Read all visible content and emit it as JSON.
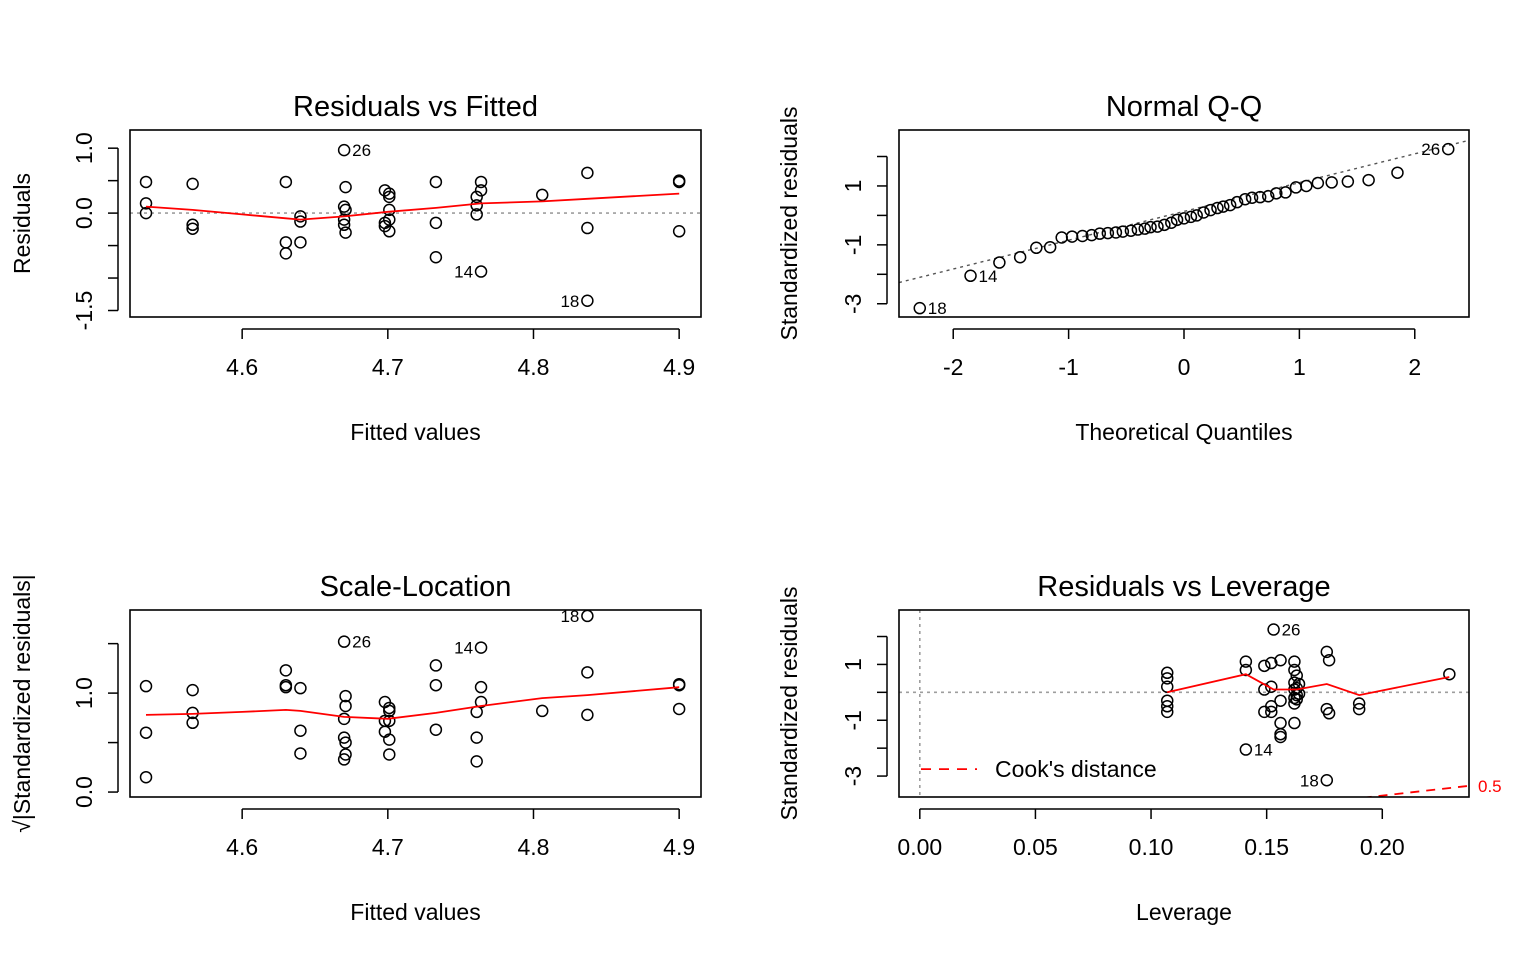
{
  "chart_data": [
    {
      "id": "rvf",
      "type": "scatter",
      "title": "Residuals vs Fitted",
      "xlabel": "Fitted values",
      "ylabel": "Residuals",
      "xlim": [
        4.523,
        4.915
      ],
      "ylim": [
        -1.6,
        1.28
      ],
      "xticks": [
        4.6,
        4.7,
        4.8,
        4.9
      ],
      "xtick_labels": [
        "4.6",
        "4.7",
        "4.8",
        "4.9"
      ],
      "yticks": [
        -1.5,
        0.0,
        1.0
      ],
      "ytick_labels": [
        "-1.5",
        "0.0",
        "1.0"
      ],
      "yticks_minor": [
        -1.0,
        -0.5,
        0.5
      ],
      "hline": 0,
      "points": [
        [
          4.534,
          0.48
        ],
        [
          4.534,
          0.15
        ],
        [
          4.534,
          0.0
        ],
        [
          4.566,
          0.45
        ],
        [
          4.566,
          -0.18
        ],
        [
          4.566,
          -0.24
        ],
        [
          4.63,
          0.48
        ],
        [
          4.63,
          -0.45
        ],
        [
          4.63,
          -0.62
        ],
        [
          4.64,
          -0.05
        ],
        [
          4.64,
          -0.13
        ],
        [
          4.64,
          -0.45
        ],
        [
          4.67,
          0.97
        ],
        [
          4.67,
          -0.1
        ],
        [
          4.67,
          -0.18
        ],
        [
          4.67,
          0.1
        ],
        [
          4.671,
          0.4
        ],
        [
          4.671,
          0.05
        ],
        [
          4.671,
          -0.3
        ],
        [
          4.698,
          0.35
        ],
        [
          4.698,
          -0.15
        ],
        [
          4.698,
          -0.2
        ],
        [
          4.701,
          0.3
        ],
        [
          4.701,
          0.25
        ],
        [
          4.701,
          0.05
        ],
        [
          4.701,
          -0.1
        ],
        [
          4.701,
          -0.28
        ],
        [
          4.733,
          0.48
        ],
        [
          4.733,
          -0.15
        ],
        [
          4.733,
          -0.68
        ],
        [
          4.761,
          0.25
        ],
        [
          4.761,
          0.12
        ],
        [
          4.761,
          -0.02
        ],
        [
          4.764,
          0.48
        ],
        [
          4.764,
          0.35
        ],
        [
          4.764,
          -0.9
        ],
        [
          4.806,
          0.28
        ],
        [
          4.837,
          0.62
        ],
        [
          4.837,
          -0.23
        ],
        [
          4.837,
          -1.35
        ],
        [
          4.9,
          0.5
        ],
        [
          4.9,
          0.48
        ],
        [
          4.9,
          -0.28
        ]
      ],
      "smooth": [
        [
          4.534,
          0.1
        ],
        [
          4.566,
          0.05
        ],
        [
          4.6,
          -0.02
        ],
        [
          4.63,
          -0.08
        ],
        [
          4.64,
          -0.1
        ],
        [
          4.67,
          -0.05
        ],
        [
          4.7,
          0.02
        ],
        [
          4.733,
          0.08
        ],
        [
          4.764,
          0.15
        ],
        [
          4.806,
          0.18
        ],
        [
          4.837,
          0.22
        ],
        [
          4.9,
          0.3
        ]
      ],
      "labels": [
        {
          "text": "26",
          "x": 4.67,
          "y": 0.97,
          "side": "right"
        },
        {
          "text": "14",
          "x": 4.764,
          "y": -0.9,
          "side": "left"
        },
        {
          "text": "18",
          "x": 4.837,
          "y": -1.35,
          "side": "left"
        }
      ]
    },
    {
      "id": "qq",
      "type": "scatter",
      "title": "Normal Q-Q",
      "xlabel": "Theoretical Quantiles",
      "ylabel": "Standardized residuals",
      "xlim": [
        -2.47,
        2.47
      ],
      "ylim": [
        -3.45,
        2.9
      ],
      "xticks": [
        -2,
        -1,
        0,
        1,
        2
      ],
      "xtick_labels": [
        "-2",
        "-1",
        "0",
        "1",
        "2"
      ],
      "yticks": [
        -3,
        -1,
        1
      ],
      "ytick_labels": [
        "-3",
        "-1",
        "1"
      ],
      "yticks_minor": [
        -2,
        0,
        2
      ],
      "refline": [
        [
          -2.47,
          -2.28
        ],
        [
          2.47,
          2.55
        ]
      ],
      "points": [
        [
          -2.29,
          -3.15
        ],
        [
          -1.85,
          -2.05
        ],
        [
          -1.6,
          -1.6
        ],
        [
          -1.42,
          -1.42
        ],
        [
          -1.28,
          -1.1
        ],
        [
          -1.16,
          -1.08
        ],
        [
          -1.06,
          -0.75
        ],
        [
          -0.97,
          -0.72
        ],
        [
          -0.88,
          -0.7
        ],
        [
          -0.8,
          -0.67
        ],
        [
          -0.73,
          -0.62
        ],
        [
          -0.66,
          -0.6
        ],
        [
          -0.59,
          -0.58
        ],
        [
          -0.53,
          -0.55
        ],
        [
          -0.46,
          -0.52
        ],
        [
          -0.4,
          -0.48
        ],
        [
          -0.34,
          -0.45
        ],
        [
          -0.29,
          -0.4
        ],
        [
          -0.23,
          -0.38
        ],
        [
          -0.17,
          -0.32
        ],
        [
          -0.11,
          -0.25
        ],
        [
          -0.06,
          -0.15
        ],
        [
          0.0,
          -0.1
        ],
        [
          0.06,
          -0.05
        ],
        [
          0.11,
          0.0
        ],
        [
          0.17,
          0.1
        ],
        [
          0.23,
          0.18
        ],
        [
          0.29,
          0.25
        ],
        [
          0.34,
          0.3
        ],
        [
          0.4,
          0.35
        ],
        [
          0.46,
          0.45
        ],
        [
          0.53,
          0.55
        ],
        [
          0.59,
          0.6
        ],
        [
          0.66,
          0.62
        ],
        [
          0.73,
          0.65
        ],
        [
          0.8,
          0.75
        ],
        [
          0.88,
          0.78
        ],
        [
          0.97,
          0.95
        ],
        [
          1.06,
          1.0
        ],
        [
          1.16,
          1.1
        ],
        [
          1.28,
          1.12
        ],
        [
          1.42,
          1.15
        ],
        [
          1.6,
          1.2
        ],
        [
          1.85,
          1.45
        ],
        [
          2.29,
          2.25
        ]
      ],
      "labels": [
        {
          "text": "18",
          "x": -2.29,
          "y": -3.15,
          "side": "right"
        },
        {
          "text": "14",
          "x": -1.85,
          "y": -2.05,
          "side": "right"
        },
        {
          "text": "26",
          "x": 2.29,
          "y": 2.25,
          "side": "left"
        }
      ]
    },
    {
      "id": "sl",
      "type": "scatter",
      "title": "Scale-Location",
      "xlabel": "Fitted values",
      "ylabel": "√|Standardized residuals|",
      "xlim": [
        4.523,
        4.915
      ],
      "ylim": [
        -0.05,
        1.84
      ],
      "xticks": [
        4.6,
        4.7,
        4.8,
        4.9
      ],
      "xtick_labels": [
        "4.6",
        "4.7",
        "4.8",
        "4.9"
      ],
      "yticks": [
        0.0,
        1.0
      ],
      "ytick_labels": [
        "0.0",
        "1.0"
      ],
      "yticks_minor": [
        0.5,
        1.5
      ],
      "points": [
        [
          4.534,
          1.07
        ],
        [
          4.534,
          0.6
        ],
        [
          4.534,
          0.15
        ],
        [
          4.566,
          1.03
        ],
        [
          4.566,
          0.8
        ],
        [
          4.566,
          0.7
        ],
        [
          4.63,
          1.23
        ],
        [
          4.63,
          1.08
        ],
        [
          4.63,
          1.06
        ],
        [
          4.64,
          1.05
        ],
        [
          4.64,
          0.62
        ],
        [
          4.64,
          0.39
        ],
        [
          4.67,
          1.52
        ],
        [
          4.67,
          0.74
        ],
        [
          4.67,
          0.55
        ],
        [
          4.67,
          0.33
        ],
        [
          4.671,
          0.97
        ],
        [
          4.671,
          0.87
        ],
        [
          4.671,
          0.5
        ],
        [
          4.671,
          0.38
        ],
        [
          4.698,
          0.91
        ],
        [
          4.698,
          0.72
        ],
        [
          4.698,
          0.61
        ],
        [
          4.701,
          0.85
        ],
        [
          4.701,
          0.82
        ],
        [
          4.701,
          0.72
        ],
        [
          4.701,
          0.53
        ],
        [
          4.701,
          0.38
        ],
        [
          4.733,
          1.28
        ],
        [
          4.733,
          1.08
        ],
        [
          4.733,
          0.63
        ],
        [
          4.761,
          0.81
        ],
        [
          4.761,
          0.55
        ],
        [
          4.761,
          0.31
        ],
        [
          4.764,
          1.46
        ],
        [
          4.764,
          1.06
        ],
        [
          4.764,
          0.91
        ],
        [
          4.806,
          0.82
        ],
        [
          4.837,
          1.78
        ],
        [
          4.837,
          1.21
        ],
        [
          4.837,
          0.78
        ],
        [
          4.9,
          1.09
        ],
        [
          4.9,
          1.08
        ],
        [
          4.9,
          0.84
        ]
      ],
      "smooth": [
        [
          4.534,
          0.78
        ],
        [
          4.566,
          0.79
        ],
        [
          4.6,
          0.81
        ],
        [
          4.63,
          0.83
        ],
        [
          4.64,
          0.82
        ],
        [
          4.67,
          0.76
        ],
        [
          4.7,
          0.74
        ],
        [
          4.733,
          0.8
        ],
        [
          4.764,
          0.87
        ],
        [
          4.806,
          0.95
        ],
        [
          4.837,
          0.98
        ],
        [
          4.9,
          1.06
        ]
      ],
      "labels": [
        {
          "text": "26",
          "x": 4.67,
          "y": 1.52,
          "side": "right"
        },
        {
          "text": "14",
          "x": 4.764,
          "y": 1.46,
          "side": "left"
        },
        {
          "text": "18",
          "x": 4.837,
          "y": 1.78,
          "side": "left"
        }
      ]
    },
    {
      "id": "rvl",
      "type": "scatter",
      "title": "Residuals vs Leverage",
      "xlabel": "Leverage",
      "ylabel": "Standardized residuals",
      "xlim": [
        -0.009,
        0.2375
      ],
      "ylim": [
        -3.75,
        2.95
      ],
      "xticks": [
        0.0,
        0.05,
        0.1,
        0.15,
        0.2
      ],
      "xtick_labels": [
        "0.00",
        "0.05",
        "0.10",
        "0.15",
        "0.20"
      ],
      "yticks": [
        -3,
        -1,
        1
      ],
      "ytick_labels": [
        "-3",
        "-1",
        "1"
      ],
      "yticks_minor": [
        -2,
        0,
        2
      ],
      "hline": 0,
      "vline": 0,
      "points": [
        [
          0.107,
          0.7
        ],
        [
          0.107,
          0.5
        ],
        [
          0.107,
          0.2
        ],
        [
          0.107,
          -0.3
        ],
        [
          0.107,
          -0.5
        ],
        [
          0.107,
          -0.7
        ],
        [
          0.141,
          1.1
        ],
        [
          0.141,
          0.8
        ],
        [
          0.141,
          -2.05
        ],
        [
          0.149,
          0.95
        ],
        [
          0.149,
          0.1
        ],
        [
          0.149,
          -0.7
        ],
        [
          0.152,
          1.05
        ],
        [
          0.152,
          0.2
        ],
        [
          0.152,
          -0.5
        ],
        [
          0.152,
          -0.7
        ],
        [
          0.153,
          2.25
        ],
        [
          0.156,
          1.15
        ],
        [
          0.156,
          -0.3
        ],
        [
          0.156,
          -1.1
        ],
        [
          0.156,
          -1.5
        ],
        [
          0.156,
          -1.6
        ],
        [
          0.162,
          1.1
        ],
        [
          0.162,
          0.8
        ],
        [
          0.162,
          0.35
        ],
        [
          0.162,
          0.1
        ],
        [
          0.162,
          -0.2
        ],
        [
          0.162,
          -0.4
        ],
        [
          0.162,
          -1.1
        ],
        [
          0.163,
          0.6
        ],
        [
          0.163,
          0.15
        ],
        [
          0.163,
          -0.1
        ],
        [
          0.163,
          -0.25
        ],
        [
          0.164,
          0.3
        ],
        [
          0.164,
          -0.05
        ],
        [
          0.176,
          1.45
        ],
        [
          0.176,
          -0.6
        ],
        [
          0.176,
          -3.15
        ],
        [
          0.177,
          1.15
        ],
        [
          0.177,
          -0.75
        ],
        [
          0.19,
          -0.4
        ],
        [
          0.19,
          -0.6
        ],
        [
          0.229,
          0.65
        ]
      ],
      "smooth": [
        [
          0.107,
          0.0
        ],
        [
          0.141,
          0.65
        ],
        [
          0.153,
          0.1
        ],
        [
          0.163,
          0.1
        ],
        [
          0.176,
          0.3
        ],
        [
          0.19,
          -0.1
        ],
        [
          0.229,
          0.55
        ]
      ],
      "cook_curve": [
        [
          0.1915,
          -3.78
        ],
        [
          0.2375,
          -3.35
        ]
      ],
      "cook_label": "0.5",
      "legend": "Cook's distance",
      "labels": [
        {
          "text": "26",
          "x": 0.153,
          "y": 2.25,
          "side": "right"
        },
        {
          "text": "14",
          "x": 0.141,
          "y": -2.05,
          "side": "right"
        },
        {
          "text": "18",
          "x": 0.176,
          "y": -3.15,
          "side": "left"
        }
      ]
    }
  ]
}
